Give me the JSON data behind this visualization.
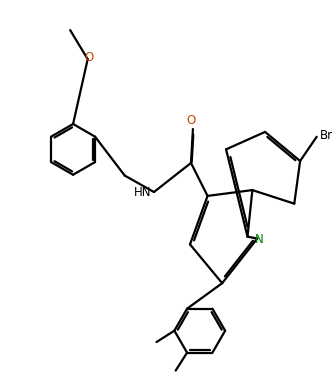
{
  "bg": "#ffffff",
  "lc": "#000000",
  "N_color": "#008000",
  "O_color": "#cc4400",
  "Br_color": "#000000",
  "lw": 1.6,
  "figsize": [
    3.34,
    3.86
  ],
  "dpi": 100,
  "xlim": [
    0,
    10
  ],
  "ylim": [
    0,
    11.5
  ]
}
